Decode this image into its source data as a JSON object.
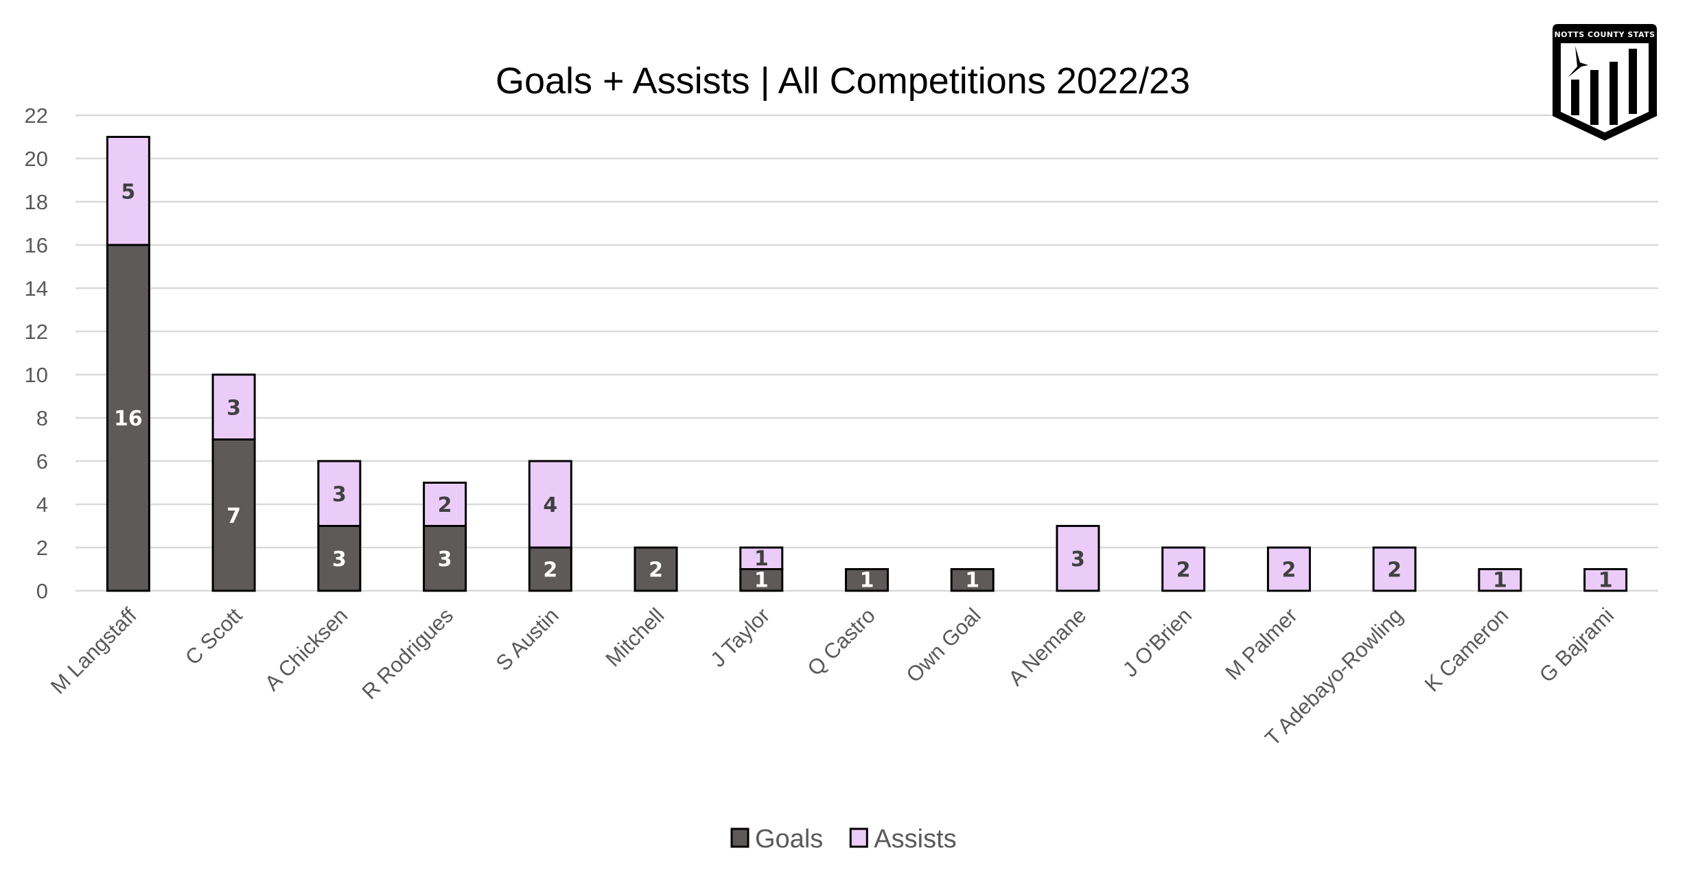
{
  "chart_data": {
    "type": "bar",
    "stacked": true,
    "title": "Goals + Assists | All Competitions 2022/23",
    "xlabel": "",
    "ylabel": "",
    "ylim": [
      0,
      22
    ],
    "yticks": [
      0,
      2,
      4,
      6,
      8,
      10,
      12,
      14,
      16,
      18,
      20,
      22
    ],
    "grid": true,
    "legend_position": "bottom",
    "categories": [
      "M Langstaff",
      "C Scott",
      "A Chicksen",
      "R Rodrigues",
      "S Austin",
      "Mitchell",
      "J Taylor",
      "Q Castro",
      "Own Goal",
      "A Nemane",
      "J O'Brien",
      "M Palmer",
      "T Adebayo-Rowling",
      "K Cameron",
      "G Bajrami"
    ],
    "series": [
      {
        "name": "Goals",
        "color": "#5e5a59",
        "values": [
          16,
          7,
          3,
          3,
          2,
          2,
          1,
          1,
          1,
          0,
          0,
          0,
          0,
          0,
          0
        ]
      },
      {
        "name": "Assists",
        "color": "#ebccf9",
        "values": [
          5,
          3,
          3,
          2,
          4,
          0,
          1,
          0,
          0,
          3,
          2,
          2,
          2,
          1,
          1
        ]
      }
    ]
  },
  "logo": {
    "text": "NOTTS COUNTY STATS",
    "icon": "shield-bar-chart-magpie-logo"
  }
}
